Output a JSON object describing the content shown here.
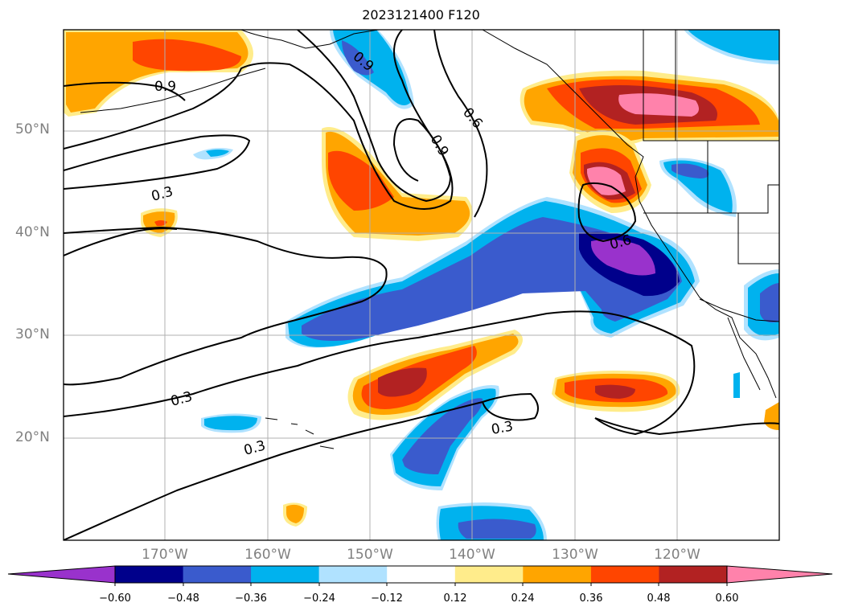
{
  "title": "2023121400 F120",
  "lat_labels": [
    "50°N",
    "40°N",
    "30°N",
    "20°N"
  ],
  "lon_labels": [
    "170°W",
    "160°W",
    "150°W",
    "140°W",
    "130°W",
    "120°W"
  ],
  "contour_labels": [
    "0.9",
    "0.9",
    "0.9",
    "0.6",
    "0.3",
    "0.6",
    "0.3",
    "0.3",
    "0.3"
  ],
  "colorbar": {
    "colors": [
      "#9932cc",
      "#00008b",
      "#3a5bcd",
      "#00b2ee",
      "#b0e2ff",
      "#ffffff",
      "#ffec8b",
      "#ffa500",
      "#ff4500",
      "#b22222",
      "#ff82ab"
    ],
    "ticks": [
      "−0.60",
      "−0.48",
      "−0.36",
      "−0.24",
      "−0.12",
      "0.12",
      "0.24",
      "0.36",
      "0.48",
      "0.60"
    ]
  }
}
